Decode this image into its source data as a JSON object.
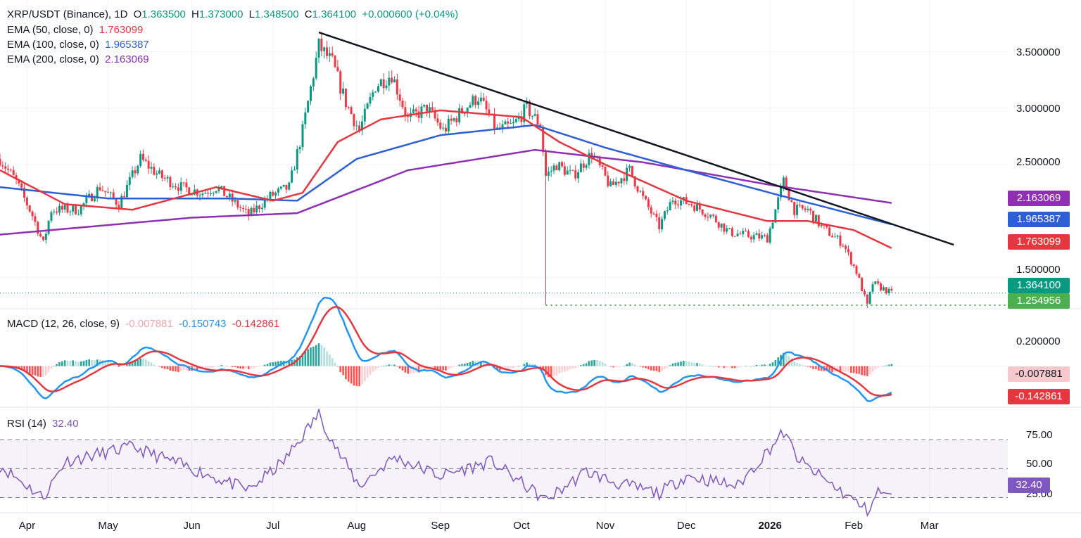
{
  "chart_data": [
    {
      "type": "candlestick",
      "symbol_label": "XRP/USDT (Binance), 1D",
      "ohlc": {
        "o_label": "O",
        "o": "1.363500",
        "h_label": "H",
        "h": "1.373000",
        "l_label": "L",
        "l": "1.348500",
        "c_label": "C",
        "c": "1.364100",
        "change": "+0.000600 (+0.04%)"
      },
      "ema": [
        {
          "name": "EMA (50, close, 0)",
          "value": "1.763099",
          "color": "#e5373f"
        },
        {
          "name": "EMA (100, close, 0)",
          "value": "1.965387",
          "color": "#2c5fd6"
        },
        {
          "name": "EMA (200, close, 0)",
          "value": "2.163069",
          "color": "#8e2fb4"
        }
      ],
      "y_ticks": [
        "3.500000",
        "3.000000",
        "2.500000",
        "1.500000"
      ],
      "ylim": [
        1.23,
        3.77
      ],
      "last_price": "1.364100",
      "support_level": "1.254956",
      "trendline": {
        "from": [
          "2025-07-18",
          3.67
        ],
        "to": [
          "2026-03-10",
          1.79
        ]
      },
      "x_ticks": [
        "Apr",
        "May",
        "Jun",
        "Jul",
        "Aug",
        "Sep",
        "Oct",
        "Nov",
        "Dec",
        "2026",
        "Feb",
        "Mar"
      ],
      "x_tick_dates": [
        "2025-04-01",
        "2025-05-01",
        "2025-06-01",
        "2025-07-01",
        "2025-08-01",
        "2025-09-01",
        "2025-10-01",
        "2025-11-01",
        "2025-12-01",
        "2026-01-01",
        "2026-02-01",
        "2026-03-01"
      ],
      "x_start": "2025-03-22",
      "x_end": "2026-03-30",
      "close_anchors": [
        [
          "2025-03-22",
          2.55
        ],
        [
          "2025-03-28",
          2.35
        ],
        [
          "2025-04-03",
          2.05
        ],
        [
          "2025-04-07",
          1.8
        ],
        [
          "2025-04-10",
          2.1
        ],
        [
          "2025-04-20",
          2.1
        ],
        [
          "2025-04-28",
          2.3
        ],
        [
          "2025-05-05",
          2.15
        ],
        [
          "2025-05-10",
          2.4
        ],
        [
          "2025-05-13",
          2.55
        ],
        [
          "2025-05-20",
          2.4
        ],
        [
          "2025-05-28",
          2.3
        ],
        [
          "2025-06-05",
          2.25
        ],
        [
          "2025-06-10",
          2.3
        ],
        [
          "2025-06-15",
          2.2
        ],
        [
          "2025-06-22",
          2.05
        ],
        [
          "2025-06-30",
          2.22
        ],
        [
          "2025-07-07",
          2.3
        ],
        [
          "2025-07-12",
          2.8
        ],
        [
          "2025-07-18",
          3.55
        ],
        [
          "2025-07-23",
          3.4
        ],
        [
          "2025-07-28",
          3.05
        ],
        [
          "2025-08-02",
          2.8
        ],
        [
          "2025-08-08",
          3.2
        ],
        [
          "2025-08-14",
          3.3
        ],
        [
          "2025-08-20",
          2.9
        ],
        [
          "2025-08-27",
          3.0
        ],
        [
          "2025-09-02",
          2.8
        ],
        [
          "2025-09-10",
          3.0
        ],
        [
          "2025-09-15",
          3.1
        ],
        [
          "2025-09-22",
          2.8
        ],
        [
          "2025-09-28",
          2.85
        ],
        [
          "2025-10-03",
          3.0
        ],
        [
          "2025-10-08",
          2.85
        ],
        [
          "2025-10-10",
          2.4
        ],
        [
          "2025-10-14",
          2.5
        ],
        [
          "2025-10-20",
          2.4
        ],
        [
          "2025-10-27",
          2.6
        ],
        [
          "2025-11-03",
          2.3
        ],
        [
          "2025-11-10",
          2.45
        ],
        [
          "2025-11-15",
          2.2
        ],
        [
          "2025-11-21",
          1.95
        ],
        [
          "2025-11-26",
          2.2
        ],
        [
          "2025-12-03",
          2.15
        ],
        [
          "2025-12-10",
          2.05
        ],
        [
          "2025-12-17",
          1.9
        ],
        [
          "2025-12-24",
          1.87
        ],
        [
          "2025-12-31",
          1.85
        ],
        [
          "2026-01-06",
          2.35
        ],
        [
          "2026-01-10",
          2.1
        ],
        [
          "2026-01-15",
          2.1
        ],
        [
          "2026-01-20",
          1.95
        ],
        [
          "2026-01-28",
          1.8
        ],
        [
          "2026-02-02",
          1.55
        ],
        [
          "2026-02-06",
          1.25
        ],
        [
          "2026-02-08",
          1.45
        ],
        [
          "2026-02-15",
          1.36
        ]
      ],
      "wicks": [
        [
          "2025-10-10",
          1.254956
        ],
        [
          "2026-02-06",
          1.23
        ]
      ],
      "ema_anchors": {
        "ema50": [
          [
            "2025-03-22",
            2.45
          ],
          [
            "2025-04-15",
            2.15
          ],
          [
            "2025-05-10",
            2.1
          ],
          [
            "2025-06-10",
            2.3
          ],
          [
            "2025-07-01",
            2.18
          ],
          [
            "2025-07-12",
            2.25
          ],
          [
            "2025-07-25",
            2.7
          ],
          [
            "2025-08-10",
            2.9
          ],
          [
            "2025-09-01",
            2.98
          ],
          [
            "2025-10-01",
            2.92
          ],
          [
            "2025-10-15",
            2.7
          ],
          [
            "2025-11-01",
            2.5
          ],
          [
            "2025-12-01",
            2.18
          ],
          [
            "2025-12-31",
            2.0
          ],
          [
            "2026-01-15",
            2.0
          ],
          [
            "2026-02-01",
            1.92
          ],
          [
            "2026-02-15",
            1.76
          ]
        ],
        "ema100": [
          [
            "2025-03-22",
            2.3
          ],
          [
            "2025-05-01",
            2.2
          ],
          [
            "2025-06-15",
            2.2
          ],
          [
            "2025-07-10",
            2.18
          ],
          [
            "2025-08-01",
            2.55
          ],
          [
            "2025-09-01",
            2.76
          ],
          [
            "2025-10-06",
            2.85
          ],
          [
            "2025-11-01",
            2.65
          ],
          [
            "2025-12-01",
            2.45
          ],
          [
            "2026-01-01",
            2.25
          ],
          [
            "2026-02-15",
            1.97
          ]
        ],
        "ema200": [
          [
            "2025-03-22",
            1.88
          ],
          [
            "2025-06-01",
            2.03
          ],
          [
            "2025-07-10",
            2.07
          ],
          [
            "2025-08-20",
            2.45
          ],
          [
            "2025-10-06",
            2.63
          ],
          [
            "2025-11-15",
            2.52
          ],
          [
            "2026-01-01",
            2.32
          ],
          [
            "2026-02-15",
            2.16
          ]
        ]
      }
    },
    {
      "type": "macd",
      "name": "MACD (12, 26, close, 9)",
      "histogram": "-0.007881",
      "macd": "-0.150743",
      "signal": "-0.142861",
      "y_ticks": [
        "0.200000"
      ],
      "ylim": [
        -0.2,
        0.28
      ]
    },
    {
      "type": "rsi",
      "name": "RSI (14)",
      "value": "32.40",
      "y_ticks": [
        "75.00",
        "50.00",
        "25.00"
      ],
      "band": [
        30,
        70
      ],
      "ylim": [
        20,
        92
      ],
      "anchors": [
        [
          "2025-03-22",
          52
        ],
        [
          "2025-04-07",
          30
        ],
        [
          "2025-04-15",
          55
        ],
        [
          "2025-05-10",
          65
        ],
        [
          "2025-06-01",
          50
        ],
        [
          "2025-06-22",
          35
        ],
        [
          "2025-07-05",
          55
        ],
        [
          "2025-07-18",
          88
        ],
        [
          "2025-07-25",
          62
        ],
        [
          "2025-08-02",
          38
        ],
        [
          "2025-08-15",
          58
        ],
        [
          "2025-09-01",
          45
        ],
        [
          "2025-09-20",
          55
        ],
        [
          "2025-10-10",
          28
        ],
        [
          "2025-10-25",
          48
        ],
        [
          "2025-11-05",
          40
        ],
        [
          "2025-11-21",
          33
        ],
        [
          "2025-12-01",
          45
        ],
        [
          "2025-12-20",
          38
        ],
        [
          "2026-01-06",
          75
        ],
        [
          "2026-01-12",
          55
        ],
        [
          "2026-02-06",
          21
        ],
        [
          "2026-02-10",
          34
        ],
        [
          "2026-02-15",
          32.4
        ]
      ]
    }
  ]
}
